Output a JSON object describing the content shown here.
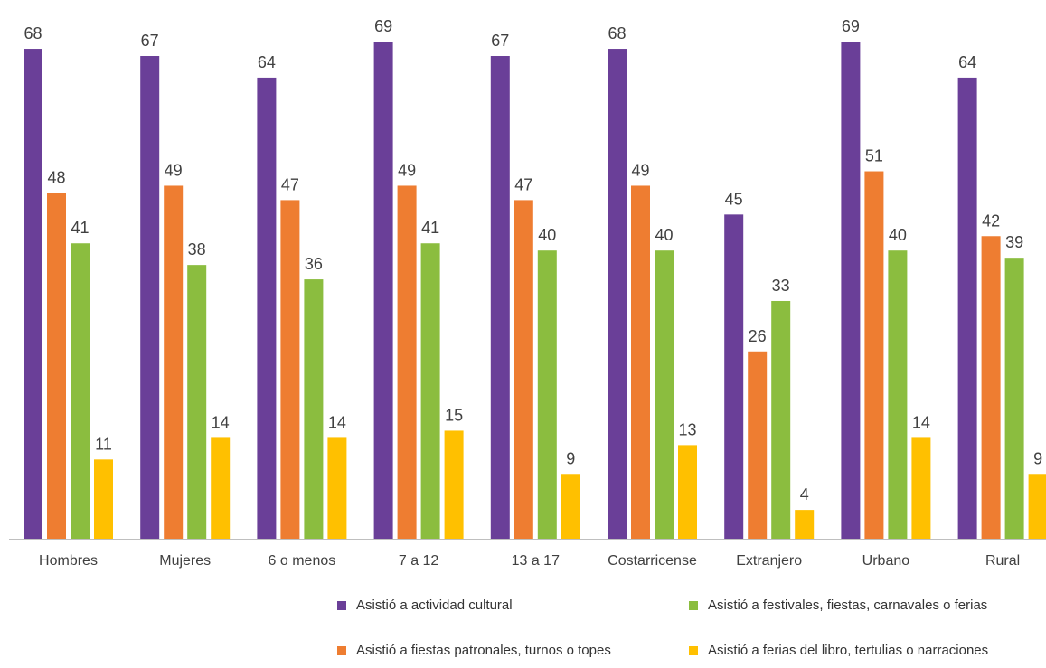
{
  "chart_data": {
    "type": "bar",
    "categories": [
      "Hombres",
      "Mujeres",
      "6 o menos",
      "7 a 12",
      "13 a 17",
      "Costarricense",
      "Extranjero",
      "Urbano",
      "Rural"
    ],
    "series": [
      {
        "name": "Asistió a actividad cultural",
        "color": "#6a3f98",
        "values": [
          68,
          67,
          64,
          69,
          67,
          68,
          45,
          69,
          64
        ]
      },
      {
        "name": "Asistió a fiestas patronales, turnos o topes",
        "color": "#ee7d31",
        "values": [
          48,
          49,
          47,
          49,
          47,
          49,
          26,
          51,
          42
        ]
      },
      {
        "name": "Asistió a festivales, fiestas, carnavales o ferias",
        "color": "#8bbd3f",
        "values": [
          41,
          38,
          36,
          41,
          40,
          40,
          33,
          40,
          39
        ]
      },
      {
        "name": "Asistió a ferias del libro, tertulias o narraciones",
        "color": "#ffc000",
        "values": [
          11,
          14,
          14,
          15,
          9,
          13,
          4,
          14,
          9
        ]
      }
    ],
    "title": "",
    "xlabel": "",
    "ylabel": "",
    "ylim": [
      0,
      75
    ],
    "grid": false,
    "legend": "bottom"
  }
}
